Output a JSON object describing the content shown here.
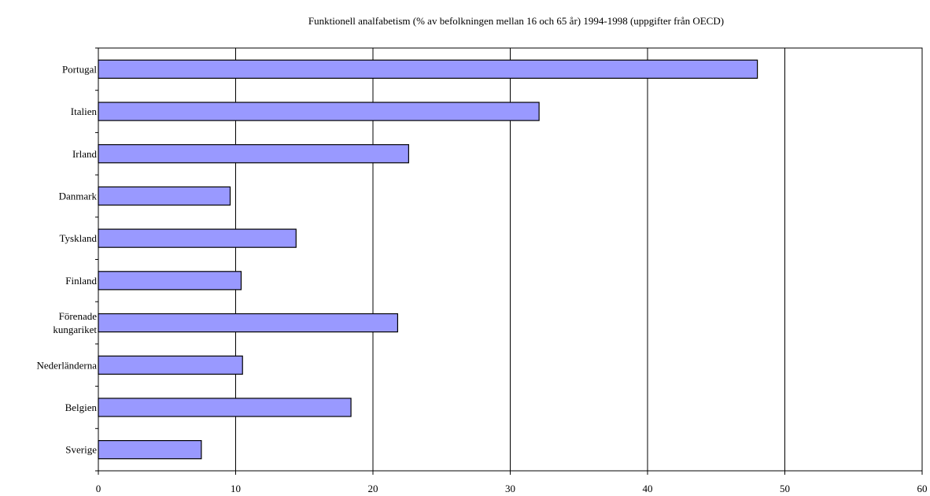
{
  "chart_data": {
    "type": "bar",
    "orientation": "horizontal",
    "title": "Funktionell analfabetism (% av befolkningen mellan 16 och 65 år) 1994-1998 (uppgifter från OECD)",
    "xlabel": "",
    "ylabel": "",
    "categories": [
      [
        "Portugal"
      ],
      [
        "Italien"
      ],
      [
        "Irland"
      ],
      [
        "Danmark"
      ],
      [
        "Tyskland"
      ],
      [
        "Finland"
      ],
      [
        "Förenade",
        "kungariket"
      ],
      [
        "Nederländerna"
      ],
      [
        "Belgien"
      ],
      [
        "Sverige"
      ]
    ],
    "values": [
      48.0,
      32.1,
      22.6,
      9.6,
      14.4,
      10.4,
      21.8,
      10.5,
      18.4,
      7.5
    ],
    "xlim": [
      0,
      60
    ],
    "xticks": [
      "0",
      "10",
      "20",
      "30",
      "40",
      "50",
      "60"
    ],
    "grid": "vertical",
    "legend": "none",
    "bar_color": "#9999ff",
    "bar_edge_color": "#000000"
  }
}
